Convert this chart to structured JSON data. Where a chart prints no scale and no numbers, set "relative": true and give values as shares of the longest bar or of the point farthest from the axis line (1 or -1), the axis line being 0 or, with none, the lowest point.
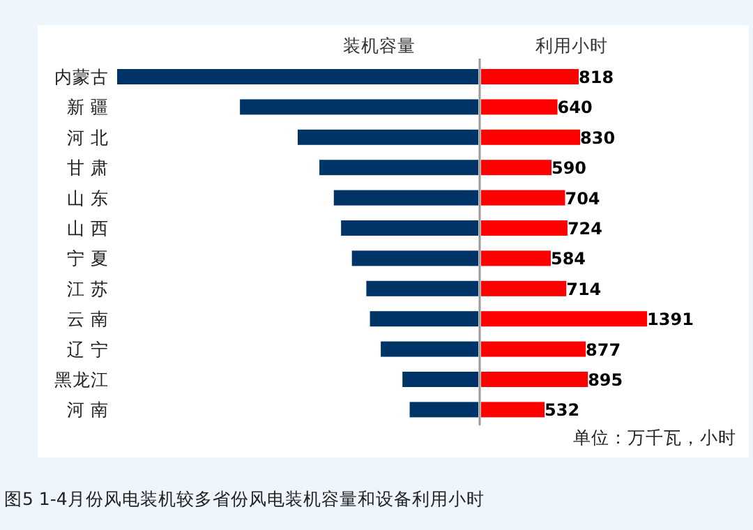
{
  "chart_data": [
    {
      "type": "bar",
      "orientation": "horizontal",
      "relative": true,
      "title": "装机容量",
      "categories": [
        "内蒙古",
        "新 疆",
        "河 北",
        "甘 肃",
        "山 东",
        "山 西",
        "宁 夏",
        "江 苏",
        "云 南",
        "辽 宁",
        "黑龙江",
        "河 南"
      ],
      "values": [
        -1,
        -0.66,
        -0.5,
        -0.44,
        -0.4,
        -0.38,
        -0.35,
        -0.31,
        -0.3,
        -0.27,
        -0.21,
        -0.19
      ],
      "color": "#003366",
      "annotations": [
        "图5 1-4月份风电装机较多省份风电装机容量和设备利用小时"
      ]
    },
    {
      "type": "bar",
      "orientation": "horizontal",
      "title": "利用小时",
      "categories": [
        null,
        null,
        null,
        null,
        null,
        null,
        null,
        null,
        null,
        null,
        null,
        null
      ],
      "values": [
        818,
        640,
        830,
        590,
        704,
        724,
        584,
        714,
        1391,
        877,
        895,
        532
      ],
      "color": "#ff0000",
      "data_labels": true,
      "annotations": [
        "单位：万千瓦，小时"
      ]
    }
  ]
}
